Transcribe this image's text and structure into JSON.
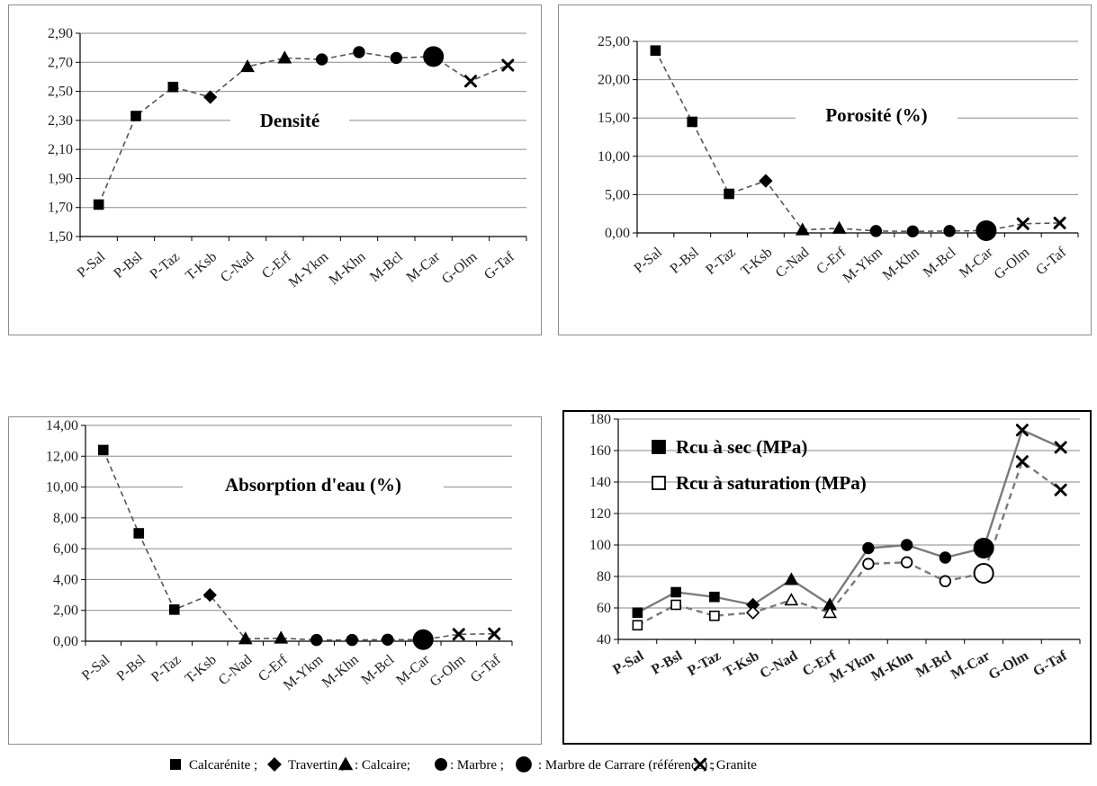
{
  "chart_data": [
    {
      "type": "line",
      "title": "Densité",
      "categories": [
        "P-Sal",
        "P-Bsl",
        "P-Taz",
        "T-Ksb",
        "C-Nad",
        "C-Erf",
        "M-Ykm",
        "M-Khn",
        "M-Bcl",
        "M-Car",
        "G-Olm",
        "G-Taf"
      ],
      "markers": [
        "square",
        "square",
        "square",
        "diamond",
        "triangle",
        "triangle",
        "circle",
        "circle",
        "circle",
        "big-circle",
        "x",
        "x"
      ],
      "series": [
        {
          "values": [
            1.72,
            2.33,
            2.53,
            2.46,
            2.67,
            2.73,
            2.72,
            2.77,
            2.73,
            2.74,
            2.57,
            2.68
          ]
        }
      ],
      "ylim": [
        1.5,
        2.9
      ],
      "yticks": [
        "1,50",
        "1,70",
        "1,90",
        "2,10",
        "2,30",
        "2,50",
        "2,70",
        "2,90"
      ],
      "grid": true
    },
    {
      "type": "line",
      "title": "Porosité (%)",
      "categories": [
        "P-Sal",
        "P-Bsl",
        "P-Taz",
        "T-Ksb",
        "C-Nad",
        "C-Erf",
        "M-Ykm",
        "M-Khn",
        "M-Bcl",
        "M-Car",
        "G-Olm",
        "G-Taf"
      ],
      "markers": [
        "square",
        "square",
        "square",
        "diamond",
        "triangle",
        "triangle",
        "circle",
        "circle",
        "circle",
        "big-circle",
        "x",
        "x"
      ],
      "series": [
        {
          "values": [
            23.8,
            14.5,
            5.1,
            6.8,
            0.4,
            0.6,
            0.25,
            0.2,
            0.25,
            0.3,
            1.2,
            1.3
          ]
        }
      ],
      "ylim": [
        0,
        25
      ],
      "yticks": [
        "0,00",
        "5,00",
        "10,00",
        "15,00",
        "20,00",
        "25,00"
      ],
      "grid": true
    },
    {
      "type": "line",
      "title": "Absorption d'eau (%)",
      "categories": [
        "P-Sal",
        "P-Bsl",
        "P-Taz",
        "T-Ksb",
        "C-Nad",
        "C-Erf",
        "M-Ykm",
        "M-Khn",
        "M-Bcl",
        "M-Car",
        "G-Olm",
        "G-Taf"
      ],
      "markers": [
        "square",
        "square",
        "square",
        "diamond",
        "triangle",
        "triangle",
        "circle",
        "circle",
        "circle",
        "big-circle",
        "x",
        "x"
      ],
      "series": [
        {
          "values": [
            12.4,
            7.0,
            2.05,
            3.0,
            0.15,
            0.2,
            0.08,
            0.08,
            0.1,
            0.1,
            0.45,
            0.48
          ]
        }
      ],
      "ylim": [
        0,
        14
      ],
      "yticks": [
        "0,00",
        "2,00",
        "4,00",
        "6,00",
        "8,00",
        "10,00",
        "12,00",
        "14,00"
      ],
      "grid": true
    },
    {
      "type": "line",
      "categories": [
        "P-Sal",
        "P-Bsl",
        "P-Taz",
        "T-Ksb",
        "C-Nad",
        "C-Erf",
        "M-Ykm",
        "M-Khn",
        "M-Bcl",
        "M-Car",
        "G-Olm",
        "G-Taf"
      ],
      "markers": [
        "square",
        "square",
        "square",
        "diamond",
        "triangle",
        "triangle",
        "circle",
        "circle",
        "circle",
        "big-circle",
        "x",
        "x"
      ],
      "series": [
        {
          "name": "Rcu à sec (MPa)",
          "filled": true,
          "values": [
            57,
            70,
            67,
            62,
            78,
            62,
            98,
            100,
            92,
            98,
            173,
            162
          ]
        },
        {
          "name": "Rcu à saturation (MPa)",
          "filled": false,
          "values": [
            49,
            62,
            55,
            57,
            65,
            57,
            88,
            89,
            77,
            82,
            153,
            135
          ]
        }
      ],
      "ylim": [
        40,
        180
      ],
      "yticks": [
        "40",
        "60",
        "80",
        "100",
        "120",
        "140",
        "160",
        "180"
      ],
      "grid": true
    }
  ],
  "legend": {
    "items": [
      {
        "marker": "square",
        "label": "Calcarénite ;"
      },
      {
        "marker": "diamond",
        "label": "Travertin ;"
      },
      {
        "marker": "triangle",
        "label": ": Calcaire;"
      },
      {
        "marker": "circle",
        "label": ": Marbre ;"
      },
      {
        "marker": "big-circle",
        "label": ": Marbre de Carrare (référence) ;"
      },
      {
        "marker": "x",
        "label": ": Granite"
      }
    ]
  }
}
